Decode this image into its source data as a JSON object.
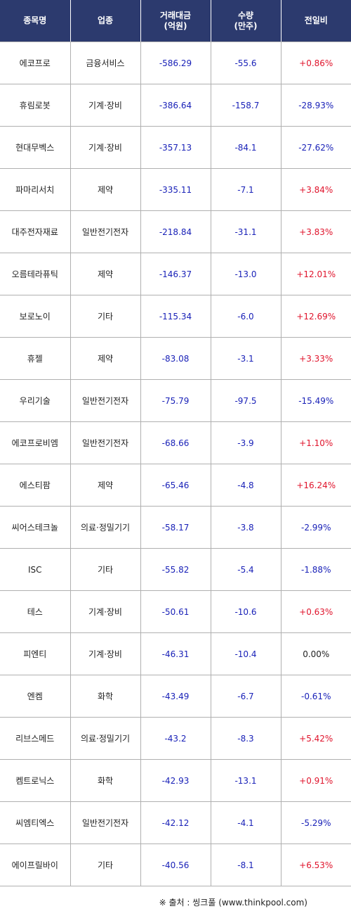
{
  "header": {
    "col_name": "종목명",
    "col_sector": "업종",
    "col_amount_line1": "거래대금",
    "col_amount_line2": "(억원)",
    "col_volume_line1": "수량",
    "col_volume_line2": "(만주)",
    "col_change": "전일비"
  },
  "rows": [
    {
      "name": "에코프로",
      "sector": "금융서비스",
      "amount": "-586.29",
      "volume": "-55.6",
      "change": "+0.86%",
      "dir": "pos"
    },
    {
      "name": "휴림로봇",
      "sector": "기계·장비",
      "amount": "-386.64",
      "volume": "-158.7",
      "change": "-28.93%",
      "dir": "neg"
    },
    {
      "name": "현대무벡스",
      "sector": "기계·장비",
      "amount": "-357.13",
      "volume": "-84.1",
      "change": "-27.62%",
      "dir": "neg"
    },
    {
      "name": "파마리서치",
      "sector": "제약",
      "amount": "-335.11",
      "volume": "-7.1",
      "change": "+3.84%",
      "dir": "pos"
    },
    {
      "name": "대주전자재료",
      "sector": "일반전기전자",
      "amount": "-218.84",
      "volume": "-31.1",
      "change": "+3.83%",
      "dir": "pos"
    },
    {
      "name": "오름테라퓨틱",
      "sector": "제약",
      "amount": "-146.37",
      "volume": "-13.0",
      "change": "+12.01%",
      "dir": "pos"
    },
    {
      "name": "보로노이",
      "sector": "기타",
      "amount": "-115.34",
      "volume": "-6.0",
      "change": "+12.69%",
      "dir": "pos"
    },
    {
      "name": "휴젤",
      "sector": "제약",
      "amount": "-83.08",
      "volume": "-3.1",
      "change": "+3.33%",
      "dir": "pos"
    },
    {
      "name": "우리기술",
      "sector": "일반전기전자",
      "amount": "-75.79",
      "volume": "-97.5",
      "change": "-15.49%",
      "dir": "neg"
    },
    {
      "name": "에코프로비엠",
      "sector": "일반전기전자",
      "amount": "-68.66",
      "volume": "-3.9",
      "change": "+1.10%",
      "dir": "pos"
    },
    {
      "name": "에스티팜",
      "sector": "제약",
      "amount": "-65.46",
      "volume": "-4.8",
      "change": "+16.24%",
      "dir": "pos"
    },
    {
      "name": "씨어스테크놀",
      "sector": "의료·정밀기기",
      "amount": "-58.17",
      "volume": "-3.8",
      "change": "-2.99%",
      "dir": "neg"
    },
    {
      "name": "ISC",
      "sector": "기타",
      "amount": "-55.82",
      "volume": "-5.4",
      "change": "-1.88%",
      "dir": "neg"
    },
    {
      "name": "테스",
      "sector": "기계·장비",
      "amount": "-50.61",
      "volume": "-10.6",
      "change": "+0.63%",
      "dir": "pos"
    },
    {
      "name": "피엔티",
      "sector": "기계·장비",
      "amount": "-46.31",
      "volume": "-10.4",
      "change": "0.00%",
      "dir": "zero"
    },
    {
      "name": "엔켐",
      "sector": "화학",
      "amount": "-43.49",
      "volume": "-6.7",
      "change": "-0.61%",
      "dir": "neg"
    },
    {
      "name": "리브스메드",
      "sector": "의료·정밀기기",
      "amount": "-43.2",
      "volume": "-8.3",
      "change": "+5.42%",
      "dir": "pos"
    },
    {
      "name": "켐트로닉스",
      "sector": "화학",
      "amount": "-42.93",
      "volume": "-13.1",
      "change": "+0.91%",
      "dir": "pos"
    },
    {
      "name": "씨엠티엑스",
      "sector": "일반전기전자",
      "amount": "-42.12",
      "volume": "-4.1",
      "change": "-5.29%",
      "dir": "neg"
    },
    {
      "name": "에이프릴바이",
      "sector": "기타",
      "amount": "-40.56",
      "volume": "-8.1",
      "change": "+6.53%",
      "dir": "pos"
    }
  ],
  "source_text": "※ 출처 : 씽크풀 (www.thinkpool.com)",
  "colors": {
    "header_bg": "#2c3a6e",
    "negative_blue": "#1a22b8",
    "positive_red": "#e0142c"
  }
}
